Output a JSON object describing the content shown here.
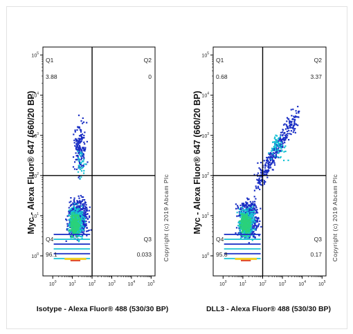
{
  "chart_data": [
    {
      "type": "scatter",
      "panel": "left",
      "xlabel": "Isotype - Alexa Fluor® 488 (530/30 BP)",
      "ylabel": "Myc - Alexa Fluor® 647 (660/20 BP)",
      "x_scale": "log",
      "y_scale": "log",
      "x_ticks": [
        0,
        1,
        2,
        3,
        4,
        5
      ],
      "y_ticks": [
        0,
        1,
        2,
        3,
        4,
        5
      ],
      "x_gate": 2,
      "y_gate": 2,
      "quadrants": [
        {
          "name": "Q1",
          "value": "3.88"
        },
        {
          "name": "Q2",
          "value": "0"
        },
        {
          "name": "Q3",
          "value": "0.033"
        },
        {
          "name": "Q4",
          "value": "96.1"
        }
      ],
      "copyright": "Copyright (c) 2019 Abcam Plc"
    },
    {
      "type": "scatter",
      "panel": "right",
      "xlabel": "DLL3 - Alexa Fluor® 488 (530/30 BP)",
      "ylabel": "Myc - Alexa Fluor® 647 (660/20 BP)",
      "x_scale": "log",
      "y_scale": "log",
      "x_ticks": [
        0,
        1,
        2,
        3,
        4,
        5
      ],
      "y_ticks": [
        0,
        1,
        2,
        3,
        4,
        5
      ],
      "x_gate": 2,
      "y_gate": 2,
      "quadrants": [
        {
          "name": "Q1",
          "value": "0.68"
        },
        {
          "name": "Q2",
          "value": "3.37"
        },
        {
          "name": "Q3",
          "value": "0.17"
        },
        {
          "name": "Q4",
          "value": "95.8"
        }
      ],
      "copyright": "Copyright (c) 2019 Abcam Plc"
    }
  ],
  "colors": {
    "low_density": "#1a2fc4",
    "mid_density": "#19c3d4",
    "high_density": "#2ad17a",
    "peak_density": "#f0d020",
    "max_density": "#e04020",
    "gate_line": "#000000"
  }
}
